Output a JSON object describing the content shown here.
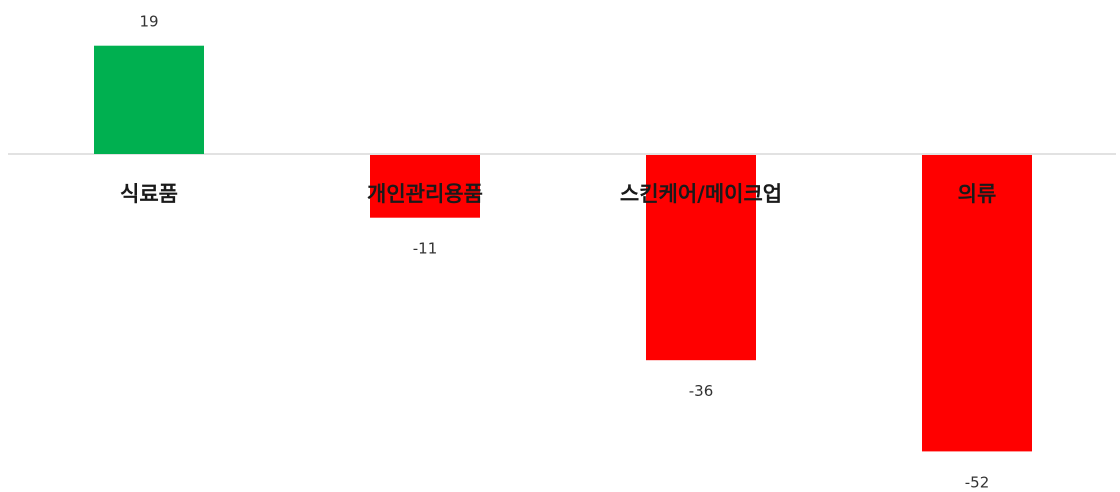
{
  "chart_data": {
    "type": "bar",
    "categories": [
      "식료품",
      "개인관리용품",
      "스킨케어/메이크업",
      "의류"
    ],
    "values": [
      19,
      -11,
      -36,
      -52
    ],
    "data_labels": [
      "19",
      "-11",
      "-36",
      "-52"
    ],
    "title": "",
    "xlabel": "",
    "ylabel": "",
    "ylim": [
      -55,
      20
    ],
    "grid": false,
    "legend": "none",
    "colors": {
      "positive": "#00b050",
      "negative": "#ff0000",
      "baseline": "#d9d9d9"
    }
  }
}
